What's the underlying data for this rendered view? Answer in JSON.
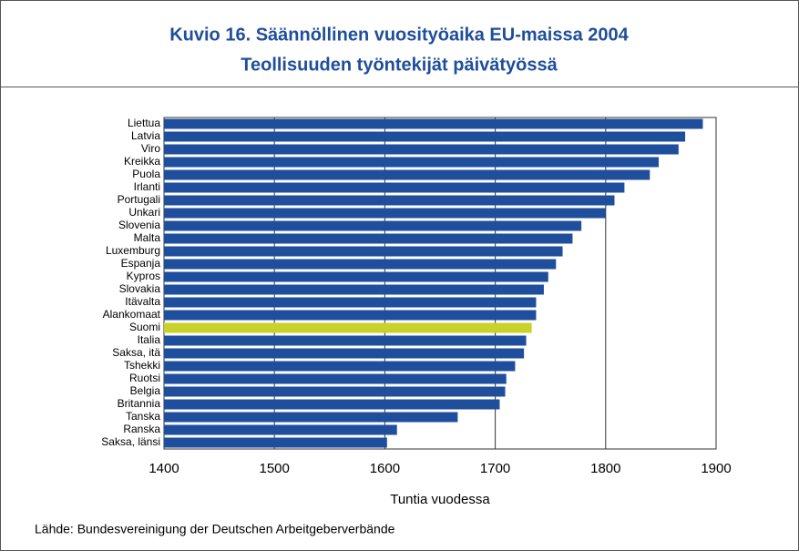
{
  "chart_data": {
    "type": "barh",
    "title": "Kuvio 16. Säännöllinen vuosityöaika EU-maissa 2004",
    "subtitle": "Teollisuuden työntekijät päivätyössä",
    "xlabel": "Tuntia vuodessa",
    "source": "Lähde: Bundesvereinigung der Deutschen Arbeitgeberverbände",
    "categories": [
      "Liettua",
      "Latvia",
      "Viro",
      "Kreikka",
      "Puola",
      "Irlanti",
      "Portugali",
      "Unkari",
      "Slovenia",
      "Malta",
      "Luxemburg",
      "Espanja",
      "Kypros",
      "Slovakia",
      "Itävalta",
      "Alankomaat",
      "Suomi",
      "Italia",
      "Saksa, itä",
      "Tshekki",
      "Ruotsi",
      "Belgia",
      "Britannia",
      "Tanska",
      "Ranska",
      "Saksa, länsi"
    ],
    "values": [
      1888,
      1872,
      1866,
      1848,
      1840,
      1817,
      1808,
      1800,
      1778,
      1770,
      1761,
      1755,
      1748,
      1744,
      1737,
      1737,
      1733,
      1728,
      1726,
      1718,
      1710,
      1709,
      1704,
      1666,
      1611,
      1602
    ],
    "color": "#1f4e9c",
    "highlight": {
      "category": "Suomi",
      "color": "#c8d22a"
    },
    "xlim": [
      1400,
      1900
    ],
    "xticks": [
      1400,
      1500,
      1600,
      1700,
      1800,
      1900
    ],
    "grid": true
  }
}
